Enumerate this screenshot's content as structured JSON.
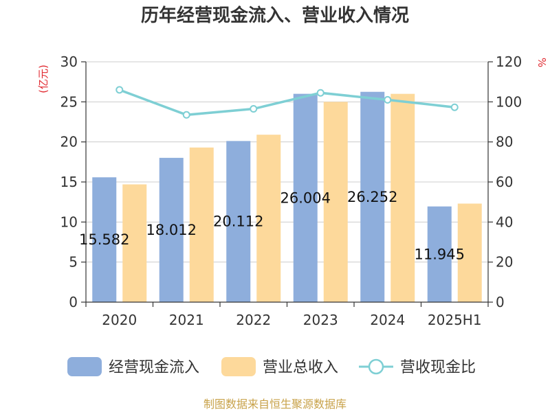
{
  "chart_data": {
    "type": "bar",
    "title": "历年经营现金流入、营业收入情况",
    "categories": [
      "2020",
      "2021",
      "2022",
      "2023",
      "2024",
      "2025H1"
    ],
    "y_left": {
      "unit": "(亿元)",
      "range": [
        0,
        30
      ],
      "ticks": [
        0,
        5,
        10,
        15,
        20,
        25,
        30
      ]
    },
    "y_right": {
      "unit": "%",
      "range": [
        0,
        120
      ],
      "ticks": [
        0,
        20,
        40,
        60,
        80,
        100,
        120
      ]
    },
    "series": [
      {
        "name": "经营现金流入",
        "type": "bar",
        "axis": "left",
        "color": "#8eaedc",
        "values": [
          15.582,
          18.012,
          20.112,
          26.004,
          26.252,
          11.945
        ],
        "labels": [
          "15.582",
          "18.012",
          "20.112",
          "26.004",
          "26.252",
          "11.945"
        ]
      },
      {
        "name": "营业总收入",
        "type": "bar",
        "axis": "left",
        "color": "#fdd99b",
        "values": [
          14.7,
          19.3,
          20.9,
          25.0,
          26.0,
          12.3
        ]
      },
      {
        "name": "营收现金比",
        "type": "line",
        "axis": "right",
        "color": "#7ecfd4",
        "values": [
          106,
          93.5,
          96.5,
          104.5,
          101,
          97.3
        ]
      }
    ],
    "grid": true,
    "legend_position": "bottom"
  },
  "footer": {
    "source": "制图数据来自恒生聚源数据库"
  }
}
